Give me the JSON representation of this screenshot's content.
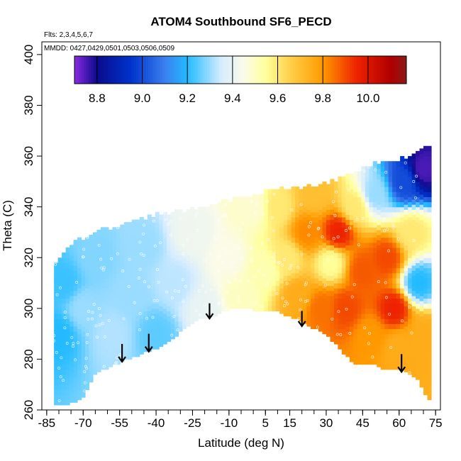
{
  "chart_data": {
    "type": "heatmap",
    "title": "ATOM4 Southbound SF6_PECD",
    "flights_note": "Flts: 2,3,4,5,6,7",
    "dates_note": "MMDD: 0427,0429,0501,0503,0506,0509",
    "xlabel": "Latitude (deg N)",
    "ylabel": "Theta (C)",
    "xlim": [
      -87,
      77
    ],
    "ylim": [
      260,
      405
    ],
    "x_ticks": [
      -85,
      -70,
      -55,
      -40,
      -25,
      -10,
      5,
      15,
      30,
      45,
      60,
      75
    ],
    "y_ticks": [
      260,
      280,
      300,
      320,
      340,
      360,
      380,
      400
    ],
    "colorbar": {
      "range": [
        8.7,
        10.17
      ],
      "ticks": [
        8.8,
        9.0,
        9.2,
        9.4,
        9.6,
        9.8,
        10.0
      ],
      "stops": [
        {
          "value": 8.7,
          "color": "#8a2be2"
        },
        {
          "value": 8.8,
          "color": "#0a0a8c"
        },
        {
          "value": 8.95,
          "color": "#0033cc"
        },
        {
          "value": 9.1,
          "color": "#3a7ff0"
        },
        {
          "value": 9.2,
          "color": "#22bbff"
        },
        {
          "value": 9.35,
          "color": "#d6ecff"
        },
        {
          "value": 9.45,
          "color": "#fbfbe8"
        },
        {
          "value": 9.55,
          "color": "#ffff99"
        },
        {
          "value": 9.65,
          "color": "#ffd24d"
        },
        {
          "value": 9.8,
          "color": "#ff9900"
        },
        {
          "value": 9.95,
          "color": "#ee2200"
        },
        {
          "value": 10.1,
          "color": "#b00000"
        },
        {
          "value": 10.17,
          "color": "#8b1a1a"
        }
      ]
    },
    "domain_bottom": [
      [
        -82,
        262
      ],
      [
        -75,
        263
      ],
      [
        -70,
        265
      ],
      [
        -65,
        275
      ],
      [
        -55,
        279
      ],
      [
        -45,
        283
      ],
      [
        -38,
        285
      ],
      [
        -30,
        291
      ],
      [
        -22,
        296
      ],
      [
        -15,
        298
      ],
      [
        -8,
        301
      ],
      [
        0,
        300
      ],
      [
        10,
        299
      ],
      [
        18,
        296
      ],
      [
        24,
        293
      ],
      [
        30,
        290
      ],
      [
        36,
        284
      ],
      [
        42,
        278
      ],
      [
        48,
        279
      ],
      [
        55,
        276
      ],
      [
        62,
        276
      ],
      [
        68,
        272
      ],
      [
        72,
        264
      ]
    ],
    "domain_top": [
      [
        -84,
        316
      ],
      [
        -78,
        322
      ],
      [
        -72,
        327
      ],
      [
        -62,
        331
      ],
      [
        -50,
        334
      ],
      [
        -40,
        337
      ],
      [
        -28,
        339
      ],
      [
        -18,
        341
      ],
      [
        -8,
        343
      ],
      [
        0,
        345
      ],
      [
        10,
        347
      ],
      [
        22,
        348
      ],
      [
        32,
        350
      ],
      [
        40,
        353
      ],
      [
        50,
        357
      ],
      [
        60,
        359
      ],
      [
        66,
        361
      ],
      [
        70,
        363
      ],
      [
        72,
        363
      ]
    ],
    "field_anchors": [
      {
        "lat": -80,
        "theta": 290,
        "value": 9.2
      },
      {
        "lat": -78,
        "theta": 310,
        "value": 9.22
      },
      {
        "lat": -70,
        "theta": 300,
        "value": 9.3
      },
      {
        "lat": -65,
        "theta": 320,
        "value": 9.28
      },
      {
        "lat": -58,
        "theta": 290,
        "value": 9.32
      },
      {
        "lat": -50,
        "theta": 305,
        "value": 9.3
      },
      {
        "lat": -45,
        "theta": 325,
        "value": 9.3
      },
      {
        "lat": -40,
        "theta": 290,
        "value": 9.25
      },
      {
        "lat": -32,
        "theta": 310,
        "value": 9.33
      },
      {
        "lat": -25,
        "theta": 330,
        "value": 9.42
      },
      {
        "lat": -20,
        "theta": 300,
        "value": 9.4
      },
      {
        "lat": -10,
        "theta": 320,
        "value": 9.45
      },
      {
        "lat": -5,
        "theta": 305,
        "value": 9.5
      },
      {
        "lat": 0,
        "theta": 340,
        "value": 9.48
      },
      {
        "lat": 5,
        "theta": 315,
        "value": 9.52
      },
      {
        "lat": 10,
        "theta": 340,
        "value": 9.6
      },
      {
        "lat": 14,
        "theta": 320,
        "value": 9.6
      },
      {
        "lat": 18,
        "theta": 305,
        "value": 9.75
      },
      {
        "lat": 22,
        "theta": 330,
        "value": 9.82
      },
      {
        "lat": 25,
        "theta": 345,
        "value": 9.7
      },
      {
        "lat": 28,
        "theta": 300,
        "value": 9.85
      },
      {
        "lat": 32,
        "theta": 318,
        "value": 9.55
      },
      {
        "lat": 35,
        "theta": 330,
        "value": 9.95
      },
      {
        "lat": 38,
        "theta": 300,
        "value": 9.9
      },
      {
        "lat": 42,
        "theta": 340,
        "value": 9.6
      },
      {
        "lat": 45,
        "theta": 315,
        "value": 9.88
      },
      {
        "lat": 48,
        "theta": 290,
        "value": 9.8
      },
      {
        "lat": 50,
        "theta": 345,
        "value": 9.3
      },
      {
        "lat": 55,
        "theta": 320,
        "value": 9.9
      },
      {
        "lat": 58,
        "theta": 300,
        "value": 9.95
      },
      {
        "lat": 60,
        "theta": 285,
        "value": 9.75
      },
      {
        "lat": 62,
        "theta": 350,
        "value": 9.0
      },
      {
        "lat": 65,
        "theta": 330,
        "value": 9.6
      },
      {
        "lat": 68,
        "theta": 310,
        "value": 9.2
      },
      {
        "lat": 70,
        "theta": 355,
        "value": 8.75
      },
      {
        "lat": 70,
        "theta": 290,
        "value": 9.75
      }
    ],
    "arrows": [
      {
        "lat": -54,
        "theta_top": 286,
        "theta_tip": 279
      },
      {
        "lat": -43,
        "theta_top": 290,
        "theta_tip": 283
      },
      {
        "lat": -18,
        "theta_top": 302,
        "theta_tip": 296
      },
      {
        "lat": 20,
        "theta_top": 299,
        "theta_tip": 293
      },
      {
        "lat": 61,
        "theta_top": 282,
        "theta_tip": 275
      }
    ]
  }
}
